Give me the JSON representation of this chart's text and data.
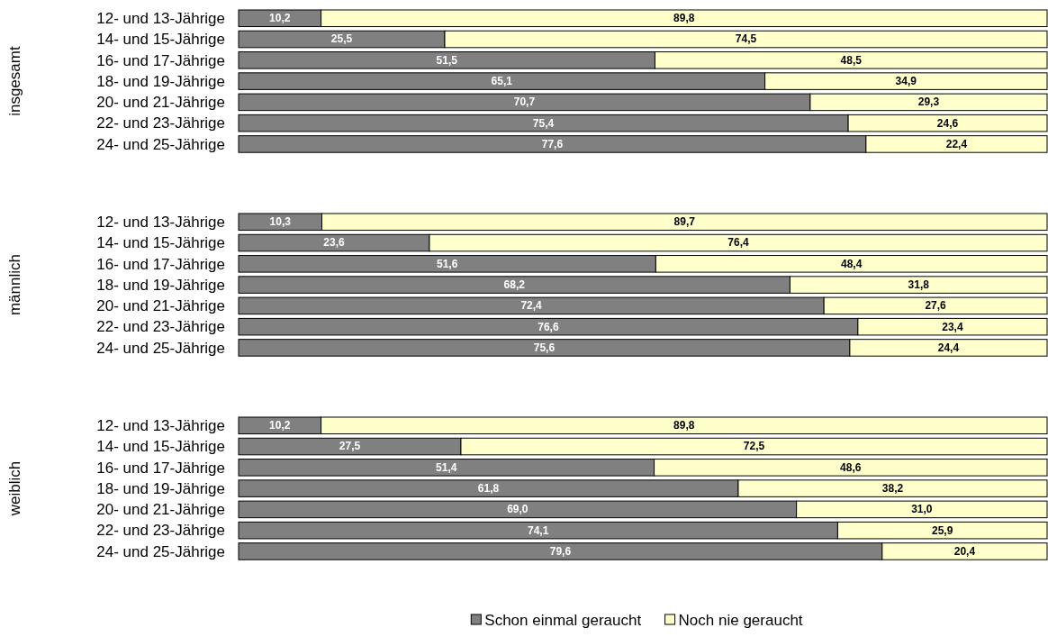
{
  "chart_data": [
    {
      "type": "bar",
      "orientation": "horizontal",
      "stacked": true,
      "ylabel": "insgesamt",
      "categories": [
        "12- und 13-Jährige",
        "14- und 15-Jährige",
        "16- und 17-Jährige",
        "18- und 19-Jährige",
        "20- und 21-Jährige",
        "22- und 23-Jährige",
        "24- und 25-Jährige"
      ],
      "series": [
        {
          "color": "#808080",
          "values": [
            10.2,
            25.5,
            51.5,
            65.1,
            70.7,
            75.4,
            77.6
          ],
          "value_labels": [
            "10,2",
            "25,5",
            "51,5",
            "65,1",
            "70,7",
            "75,4",
            "77,6"
          ]
        },
        {
          "color": "#ffffcc",
          "values": [
            89.8,
            74.5,
            48.5,
            34.9,
            29.3,
            24.6,
            22.4
          ],
          "value_labels": [
            "89,8",
            "74,5",
            "48,5",
            "34,9",
            "29,3",
            "24,6",
            "22,4"
          ]
        }
      ]
    },
    {
      "type": "bar",
      "orientation": "horizontal",
      "stacked": true,
      "ylabel": "männlich",
      "categories": [
        "12- und 13-Jährige",
        "14- und 15-Jährige",
        "16- und 17-Jährige",
        "18- und 19-Jährige",
        "20- und 21-Jährige",
        "22- und 23-Jährige",
        "24- und 25-Jährige"
      ],
      "series": [
        {
          "color": "#808080",
          "values": [
            10.3,
            23.6,
            51.6,
            68.2,
            72.4,
            76.6,
            75.6
          ],
          "value_labels": [
            "10,3",
            "23,6",
            "51,6",
            "68,2",
            "72,4",
            "76,6",
            "75,6"
          ]
        },
        {
          "color": "#ffffcc",
          "values": [
            89.7,
            76.4,
            48.4,
            31.8,
            27.6,
            23.4,
            24.4
          ],
          "value_labels": [
            "89,7",
            "76,4",
            "48,4",
            "31,8",
            "27,6",
            "23,4",
            "24,4"
          ]
        }
      ]
    },
    {
      "type": "bar",
      "orientation": "horizontal",
      "stacked": true,
      "ylabel": "weiblich",
      "legend": "bottom",
      "categories": [
        "12- und 13-Jährige",
        "14- und 15-Jährige",
        "16- und 17-Jährige",
        "18- und 19-Jährige",
        "20- und 21-Jährige",
        "22- und 23-Jährige",
        "24- und 25-Jährige"
      ],
      "series": [
        {
          "name": "Schon einmal geraucht",
          "color": "#808080",
          "values": [
            10.2,
            27.5,
            51.4,
            61.8,
            69.0,
            74.1,
            79.6
          ],
          "value_labels": [
            "10,2",
            "27,5",
            "51,4",
            "61,8",
            "69,0",
            "74,1",
            "79,6"
          ]
        },
        {
          "name": "Noch nie geraucht",
          "color": "#ffffcc",
          "values": [
            89.8,
            72.5,
            48.6,
            38.2,
            31.0,
            25.9,
            20.4
          ],
          "value_labels": [
            "89,8",
            "72,5",
            "48,6",
            "38,2",
            "31,0",
            "25,9",
            "20,4"
          ]
        }
      ]
    }
  ]
}
